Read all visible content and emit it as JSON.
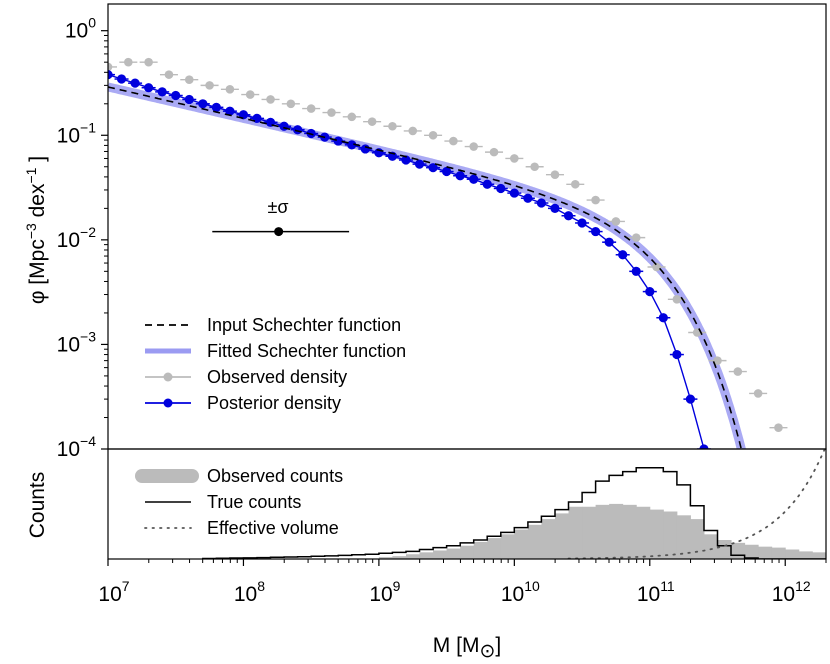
{
  "chart_data": [
    {
      "type": "line",
      "panel": "mass-function",
      "log_x": true,
      "log_y": true,
      "xlim": [
        10000000.0,
        2000000000000.0
      ],
      "ylim": [
        0.0001,
        1.8
      ],
      "ylabel": {
        "base": "φ [Mpc",
        "exp1": "−3",
        "mid": " dex",
        "exp2": "−1",
        "end": " ]"
      },
      "y_ticks": [
        {
          "value": 1,
          "base": "10",
          "exp": "0"
        },
        {
          "value": 0.1,
          "base": "10",
          "exp": "−1"
        },
        {
          "value": 0.01,
          "base": "10",
          "exp": "−2"
        },
        {
          "value": 0.001,
          "base": "10",
          "exp": "−3"
        },
        {
          "value": 0.0001,
          "base": "10",
          "exp": "−4"
        }
      ],
      "schechter": {
        "log_phi_star": -2.1,
        "log_m_star": 11.0,
        "alpha": -1.3
      },
      "series": [
        {
          "name": "Input Schechter function",
          "style": "dashed",
          "color": "#000000"
        },
        {
          "name": "Fitted Schechter function",
          "style": "band",
          "color": "#9b9bf2"
        },
        {
          "name": "Observed density",
          "color": "#bbbbbb",
          "log_x": [
            7.0,
            7.15,
            7.3,
            7.45,
            7.6,
            7.75,
            7.9,
            8.05,
            8.2,
            8.35,
            8.5,
            8.65,
            8.8,
            8.95,
            9.1,
            9.25,
            9.4,
            9.55,
            9.7,
            9.85,
            10.0,
            10.15,
            10.3,
            10.45,
            10.6,
            10.75,
            10.9,
            11.05,
            11.2,
            11.35,
            11.5,
            11.65,
            11.8,
            11.95
          ],
          "y": [
            0.45,
            0.5,
            0.5,
            0.38,
            0.34,
            0.3,
            0.275,
            0.245,
            0.22,
            0.2,
            0.18,
            0.165,
            0.15,
            0.135,
            0.122,
            0.11,
            0.1,
            0.088,
            0.078,
            0.069,
            0.06,
            0.05,
            0.042,
            0.034,
            0.024,
            0.015,
            0.0105,
            0.0055,
            0.0027,
            0.0013,
            0.0007,
            0.00055,
            0.00034,
            0.00016
          ]
        },
        {
          "name": "Posterior density",
          "color": "#0000dd",
          "log_x": [
            7.0,
            7.1,
            7.2,
            7.3,
            7.4,
            7.5,
            7.6,
            7.7,
            7.8,
            7.9,
            8.0,
            8.1,
            8.2,
            8.3,
            8.4,
            8.5,
            8.6,
            8.7,
            8.8,
            8.9,
            9.0,
            9.1,
            9.2,
            9.3,
            9.4,
            9.5,
            9.6,
            9.7,
            9.8,
            9.9,
            10.0,
            10.1,
            10.2,
            10.3,
            10.4,
            10.5,
            10.6,
            10.7,
            10.8,
            10.9,
            11.0,
            11.1,
            11.2,
            11.3,
            11.4,
            11.5
          ],
          "y": [
            0.38,
            0.345,
            0.315,
            0.285,
            0.26,
            0.24,
            0.22,
            0.2,
            0.185,
            0.17,
            0.157,
            0.145,
            0.133,
            0.122,
            0.113,
            0.104,
            0.096,
            0.088,
            0.081,
            0.074,
            0.068,
            0.063,
            0.058,
            0.053,
            0.049,
            0.045,
            0.041,
            0.038,
            0.034,
            0.031,
            0.028,
            0.025,
            0.0225,
            0.02,
            0.017,
            0.0145,
            0.012,
            0.0095,
            0.0072,
            0.005,
            0.0032,
            0.0018,
            0.0008,
            0.0003,
            0.0001,
            2e-05
          ]
        }
      ],
      "annotation": {
        "text": "±σ",
        "log_x_center": 8.26,
        "log_x_range": [
          7.77,
          8.78
        ],
        "y": 0.012
      }
    },
    {
      "type": "histogram",
      "panel": "counts",
      "log_x": true,
      "xlim": [
        10000000.0,
        2000000000000.0
      ],
      "ylabel": "Counts",
      "xlabel": {
        "base": "M [M",
        "sub": "⊙",
        "end": "]"
      },
      "x_ticks": [
        {
          "value": 10000000.0,
          "base": "10",
          "exp": "7"
        },
        {
          "value": 100000000.0,
          "base": "10",
          "exp": "8"
        },
        {
          "value": 1000000000.0,
          "base": "10",
          "exp": "9"
        },
        {
          "value": 10000000000.0,
          "base": "10",
          "exp": "10"
        },
        {
          "value": 100000000000.0,
          "base": "10",
          "exp": "11"
        },
        {
          "value": 1000000000000.0,
          "base": "10",
          "exp": "12"
        }
      ],
      "bin_edges_log": [
        7.7,
        7.8,
        7.9,
        8.0,
        8.1,
        8.2,
        8.3,
        8.4,
        8.5,
        8.6,
        8.7,
        8.8,
        8.9,
        9.0,
        9.1,
        9.2,
        9.3,
        9.4,
        9.5,
        9.6,
        9.7,
        9.8,
        9.9,
        10.0,
        10.1,
        10.2,
        10.3,
        10.4,
        10.5,
        10.6,
        10.7,
        10.8,
        10.9,
        11.0,
        11.1,
        11.2,
        11.3,
        11.4,
        11.5,
        11.6,
        11.7,
        11.8,
        11.9,
        12.0,
        12.1,
        12.2,
        12.3
      ],
      "series": [
        {
          "name": "Observed counts",
          "color": "#bbbbbb",
          "values": [
            0,
            0,
            0,
            0,
            0,
            0,
            0,
            0,
            0,
            0,
            0,
            0,
            0,
            0.02,
            0.03,
            0.05,
            0.07,
            0.09,
            0.11,
            0.14,
            0.18,
            0.22,
            0.26,
            0.31,
            0.36,
            0.42,
            0.48,
            0.55,
            0.55,
            0.57,
            0.58,
            0.57,
            0.55,
            0.52,
            0.5,
            0.46,
            0.42,
            0.26,
            0.2,
            0.17,
            0.15,
            0.13,
            0.12,
            0.1,
            0.08,
            0.07
          ]
        },
        {
          "name": "True counts",
          "color": "#000000",
          "values": [
            0.005,
            0.008,
            0.01,
            0.012,
            0.015,
            0.018,
            0.021,
            0.024,
            0.028,
            0.033,
            0.038,
            0.044,
            0.05,
            0.06,
            0.07,
            0.08,
            0.1,
            0.12,
            0.14,
            0.17,
            0.2,
            0.24,
            0.28,
            0.33,
            0.39,
            0.45,
            0.52,
            0.6,
            0.7,
            0.82,
            0.88,
            0.92,
            0.96,
            0.96,
            0.92,
            0.78,
            0.56,
            0.3,
            0.14,
            0.04,
            0.01,
            0,
            0,
            0,
            0,
            0
          ]
        },
        {
          "name": "Effective volume",
          "style": "dotted",
          "color": "#555555"
        }
      ]
    }
  ]
}
